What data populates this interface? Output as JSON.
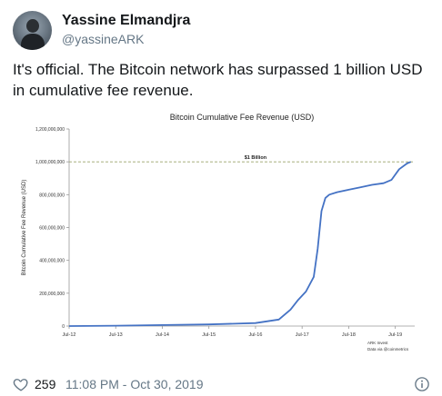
{
  "tweet": {
    "author_name": "Yassine Elmandjra",
    "handle": "@yassineARK",
    "text": "It's official. The Bitcoin network has surpassed 1 billion USD in cumulative fee revenue.",
    "likes": "259",
    "timestamp": "11:08 PM - Oct 30, 2019"
  },
  "icons": {
    "like": "heart-icon",
    "info": "info-icon"
  },
  "colors": {
    "line": "#4472c4",
    "threshold": "#9aa36a",
    "muted": "#657786"
  },
  "chart_data": {
    "type": "line",
    "title": "Bitcoin Cumulative Fee Revenue (USD)",
    "ylabel": "Bitcoin Cumulative Fee Revenue (USD)",
    "xlabel": "",
    "x_ticks": [
      "Jul-12",
      "Jul-13",
      "Jul-14",
      "Jul-15",
      "Jul-16",
      "Jul-17",
      "Jul-18",
      "Jul-19"
    ],
    "y_ticks": [
      "0",
      "200,000,000",
      "400,000,000",
      "600,000,000",
      "800,000,000",
      "1,000,000,000",
      "1,200,000,000"
    ],
    "ylim": [
      0,
      1200000000
    ],
    "xlim": [
      "2012-07",
      "2019-12"
    ],
    "grid": false,
    "threshold": {
      "value": 1000000000,
      "label": "$1 Billion"
    },
    "source_note": [
      "ARK Invest",
      "Data via @coinmetrics"
    ],
    "series": [
      {
        "x": [
          "2012-07",
          "2013-07",
          "2014-07",
          "2015-07",
          "2016-07",
          "2017-01",
          "2017-04",
          "2017-06",
          "2017-08",
          "2017-10",
          "2017-11",
          "2017-12",
          "2018-01",
          "2018-02",
          "2018-04",
          "2018-07",
          "2018-10",
          "2019-01",
          "2019-04",
          "2019-06",
          "2019-08",
          "2019-10",
          "2019-11"
        ],
        "y": [
          0,
          2000000,
          6000000,
          10000000,
          18000000,
          40000000,
          100000000,
          160000000,
          210000000,
          300000000,
          470000000,
          700000000,
          780000000,
          800000000,
          815000000,
          830000000,
          845000000,
          860000000,
          870000000,
          890000000,
          955000000,
          990000000,
          1000000000
        ]
      }
    ]
  }
}
